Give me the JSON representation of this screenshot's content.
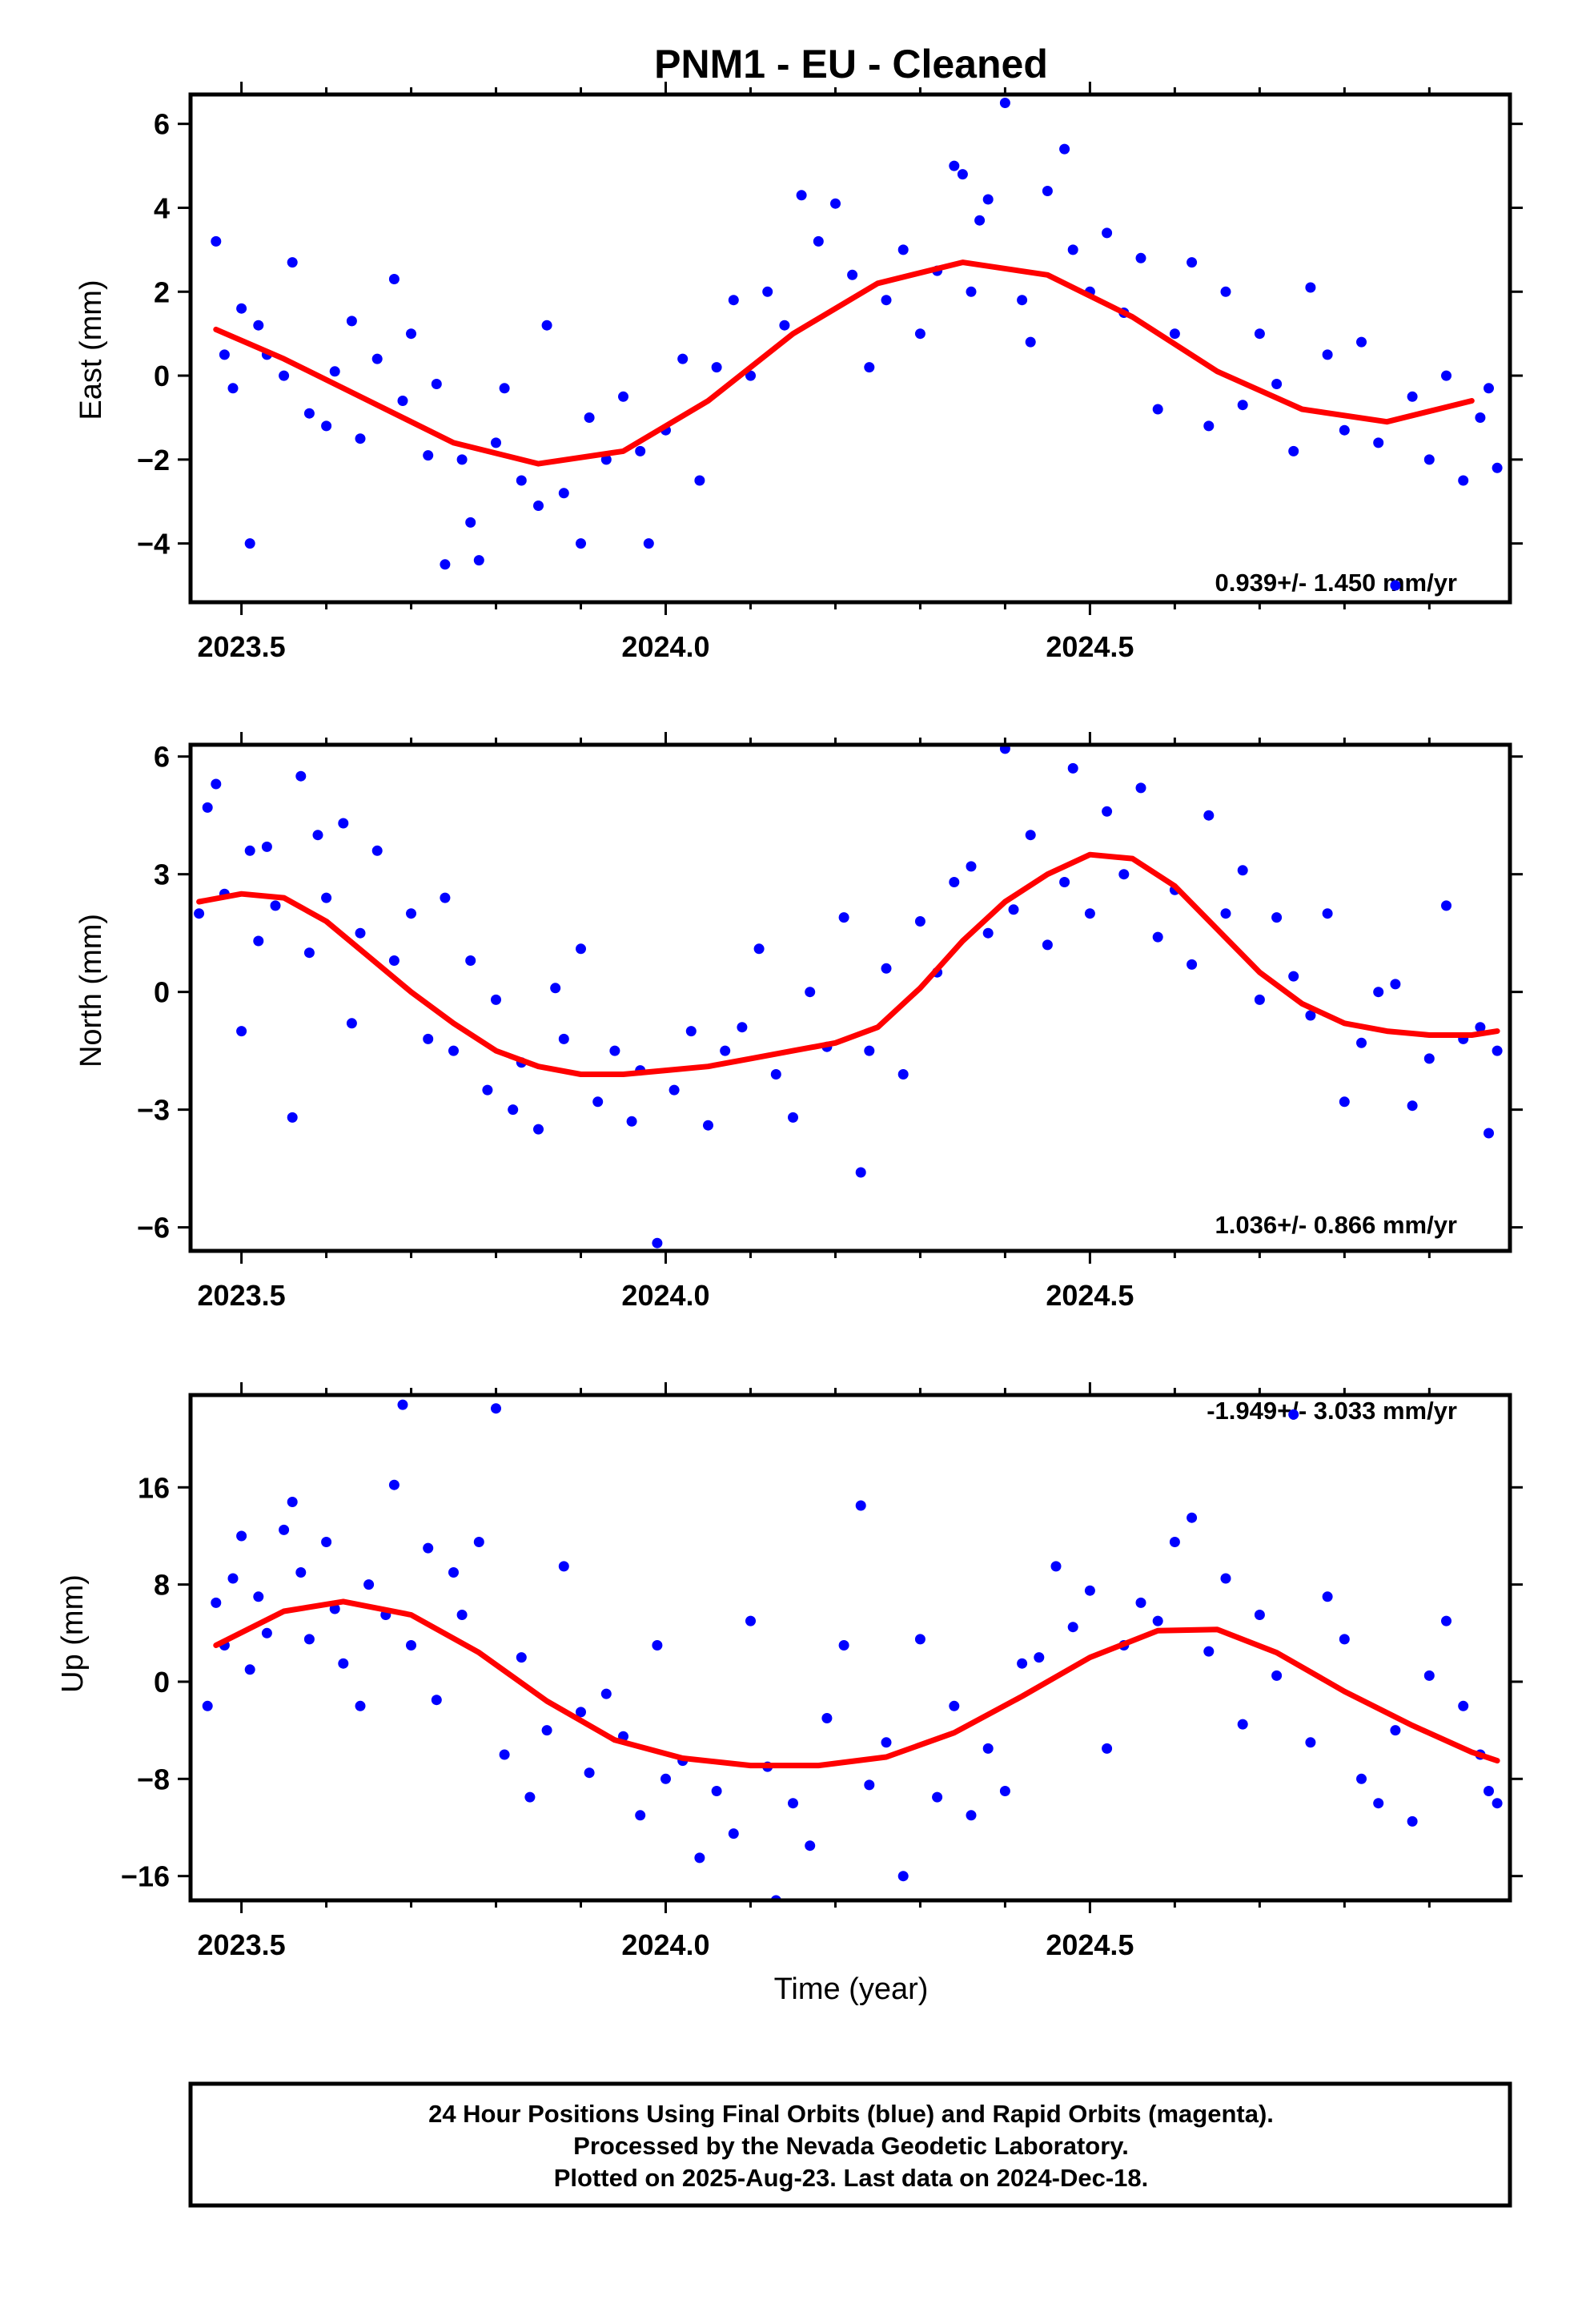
{
  "title": "PNM1  - EU - Cleaned",
  "colors": {
    "points": "#0000ff",
    "fit": "#ff0000",
    "frame": "#000000"
  },
  "xlabel": "Time (year)",
  "footer": {
    "line1": "24 Hour Positions Using Final Orbits (blue) and Rapid Orbits (magenta).",
    "line2": "Processed by the Nevada Geodetic Laboratory.",
    "line3": "Plotted on 2025-Aug-23. Last data on 2024-Dec-18."
  },
  "chart_data": [
    {
      "type": "scatter",
      "name": "east",
      "ylabel": "East (mm)",
      "xlim": [
        2023.44,
        2024.995
      ],
      "ylim": [
        -5.4,
        6.7
      ],
      "x_ticks": [
        2023.5,
        2024.0,
        2024.5
      ],
      "x_tick_labels": [
        "2023.5",
        "2024.0",
        "2024.5"
      ],
      "y_ticks": [
        -4,
        -2,
        0,
        2,
        4,
        6
      ],
      "y_tick_labels": [
        "−4",
        "−2",
        "0",
        "2",
        "4",
        "6"
      ],
      "rate_text": "0.939+/- 1.450 mm/yr",
      "rate_position": "bottom-right",
      "fit": {
        "x": [
          2023.47,
          2023.55,
          2023.65,
          2023.75,
          2023.85,
          2023.95,
          2024.05,
          2024.15,
          2024.25,
          2024.35,
          2024.45,
          2024.55,
          2024.65,
          2024.75,
          2024.85,
          2024.95
        ],
        "y": [
          1.1,
          0.4,
          -0.6,
          -1.6,
          -2.1,
          -1.8,
          -0.6,
          1.0,
          2.2,
          2.7,
          2.4,
          1.4,
          0.1,
          -0.8,
          -1.1,
          -0.6
        ]
      },
      "points": {
        "x": [
          2023.47,
          2023.48,
          2023.49,
          2023.5,
          2023.51,
          2023.52,
          2023.53,
          2023.55,
          2023.56,
          2023.58,
          2023.6,
          2023.61,
          2023.63,
          2023.64,
          2023.66,
          2023.68,
          2023.69,
          2023.7,
          2023.72,
          2023.73,
          2023.74,
          2023.76,
          2023.77,
          2023.78,
          2023.8,
          2023.81,
          2023.83,
          2023.85,
          2023.86,
          2023.88,
          2023.9,
          2023.91,
          2023.93,
          2023.95,
          2023.97,
          2023.98,
          2024.0,
          2024.02,
          2024.04,
          2024.06,
          2024.08,
          2024.1,
          2024.12,
          2024.14,
          2024.16,
          2024.18,
          2024.2,
          2024.22,
          2024.24,
          2024.26,
          2024.28,
          2024.3,
          2024.32,
          2024.34,
          2024.35,
          2024.36,
          2024.37,
          2024.38,
          2024.4,
          2024.42,
          2024.43,
          2024.45,
          2024.47,
          2024.48,
          2024.5,
          2024.52,
          2024.54,
          2024.56,
          2024.58,
          2024.6,
          2024.62,
          2024.64,
          2024.66,
          2024.68,
          2024.7,
          2024.72,
          2024.74,
          2024.76,
          2024.78,
          2024.8,
          2024.82,
          2024.84,
          2024.86,
          2024.88,
          2024.9,
          2024.92,
          2024.94,
          2024.96,
          2024.97,
          2024.98
        ],
        "y": [
          3.2,
          0.5,
          -0.3,
          1.6,
          -4.0,
          1.2,
          0.5,
          0.0,
          2.7,
          -0.9,
          -1.2,
          0.1,
          1.3,
          -1.5,
          0.4,
          2.3,
          -0.6,
          1.0,
          -1.9,
          -0.2,
          -4.5,
          -2.0,
          -3.5,
          -4.4,
          -1.6,
          -0.3,
          -2.5,
          -3.1,
          1.2,
          -2.8,
          -4.0,
          -1.0,
          -2.0,
          -0.5,
          -1.8,
          -4.0,
          -1.3,
          0.4,
          -2.5,
          0.2,
          1.8,
          0.0,
          2.0,
          1.2,
          4.3,
          3.2,
          4.1,
          2.4,
          0.2,
          1.8,
          3.0,
          1.0,
          2.5,
          5.0,
          4.8,
          2.0,
          3.7,
          4.2,
          6.5,
          1.8,
          0.8,
          4.4,
          5.4,
          3.0,
          2.0,
          3.4,
          1.5,
          2.8,
          -0.8,
          1.0,
          2.7,
          -1.2,
          2.0,
          -0.7,
          1.0,
          -0.2,
          -1.8,
          2.1,
          0.5,
          -1.3,
          0.8,
          -1.6,
          -5.0,
          -0.5,
          -2.0,
          0.0,
          -2.5,
          -1.0,
          -0.3,
          -2.2
        ]
      }
    },
    {
      "type": "scatter",
      "name": "north",
      "ylabel": "North (mm)",
      "xlim": [
        2023.44,
        2024.995
      ],
      "ylim": [
        -6.6,
        6.3
      ],
      "x_ticks": [
        2023.5,
        2024.0,
        2024.5
      ],
      "x_tick_labels": [
        "2023.5",
        "2024.0",
        "2024.5"
      ],
      "y_ticks": [
        -6,
        -3,
        0,
        3,
        6
      ],
      "y_tick_labels": [
        "−6",
        "−3",
        "0",
        "3",
        "6"
      ],
      "rate_text": "1.036+/- 0.866 mm/yr",
      "rate_position": "bottom-right",
      "fit": {
        "x": [
          2023.45,
          2023.5,
          2023.55,
          2023.6,
          2023.65,
          2023.7,
          2023.75,
          2023.8,
          2023.85,
          2023.9,
          2023.95,
          2024.0,
          2024.05,
          2024.1,
          2024.15,
          2024.2,
          2024.25,
          2024.3,
          2024.35,
          2024.4,
          2024.45,
          2024.5,
          2024.55,
          2024.6,
          2024.65,
          2024.7,
          2024.75,
          2024.8,
          2024.85,
          2024.9,
          2024.95,
          2024.98
        ],
        "y": [
          2.3,
          2.5,
          2.4,
          1.8,
          0.9,
          0.0,
          -0.8,
          -1.5,
          -1.9,
          -2.1,
          -2.1,
          -2.0,
          -1.9,
          -1.7,
          -1.5,
          -1.3,
          -0.9,
          0.1,
          1.3,
          2.3,
          3.0,
          3.5,
          3.4,
          2.7,
          1.6,
          0.5,
          -0.3,
          -0.8,
          -1.0,
          -1.1,
          -1.1,
          -1.0
        ]
      },
      "points": {
        "x": [
          2023.45,
          2023.46,
          2023.47,
          2023.48,
          2023.5,
          2023.51,
          2023.52,
          2023.53,
          2023.54,
          2023.56,
          2023.57,
          2023.58,
          2023.59,
          2023.6,
          2023.62,
          2023.63,
          2023.64,
          2023.66,
          2023.68,
          2023.7,
          2023.72,
          2023.74,
          2023.75,
          2023.77,
          2023.79,
          2023.8,
          2023.82,
          2023.83,
          2023.85,
          2023.87,
          2023.88,
          2023.9,
          2023.92,
          2023.94,
          2023.96,
          2023.97,
          2023.99,
          2024.01,
          2024.03,
          2024.05,
          2024.07,
          2024.09,
          2024.11,
          2024.13,
          2024.15,
          2024.17,
          2024.19,
          2024.21,
          2024.23,
          2024.24,
          2024.26,
          2024.28,
          2024.3,
          2024.32,
          2024.34,
          2024.36,
          2024.38,
          2024.4,
          2024.41,
          2024.43,
          2024.45,
          2024.47,
          2024.48,
          2024.5,
          2024.52,
          2024.54,
          2024.56,
          2024.58,
          2024.6,
          2024.62,
          2024.64,
          2024.66,
          2024.68,
          2024.7,
          2024.72,
          2024.74,
          2024.76,
          2024.78,
          2024.8,
          2024.82,
          2024.84,
          2024.86,
          2024.88,
          2024.9,
          2024.92,
          2024.94,
          2024.96,
          2024.97,
          2024.98
        ],
        "y": [
          2.0,
          4.7,
          5.3,
          2.5,
          -1.0,
          3.6,
          1.3,
          3.7,
          2.2,
          -3.2,
          5.5,
          1.0,
          4.0,
          2.4,
          4.3,
          -0.8,
          1.5,
          3.6,
          0.8,
          2.0,
          -1.2,
          2.4,
          -1.5,
          0.8,
          -2.5,
          -0.2,
          -3.0,
          -1.8,
          -3.5,
          0.1,
          -1.2,
          1.1,
          -2.8,
          -1.5,
          -3.3,
          -2.0,
          -6.4,
          -2.5,
          -1.0,
          -3.4,
          -1.5,
          -0.9,
          1.1,
          -2.1,
          -3.2,
          0.0,
          -1.4,
          1.9,
          -4.6,
          -1.5,
          0.6,
          -2.1,
          1.8,
          0.5,
          2.8,
          3.2,
          1.5,
          6.2,
          2.1,
          4.0,
          1.2,
          2.8,
          5.7,
          2.0,
          4.6,
          3.0,
          5.2,
          1.4,
          2.6,
          0.7,
          4.5,
          2.0,
          3.1,
          -0.2,
          1.9,
          0.4,
          -0.6,
          2.0,
          -2.8,
          -1.3,
          0.0,
          0.2,
          -2.9,
          -1.7,
          2.2,
          -1.2,
          -0.9,
          -3.6,
          -1.5
        ]
      }
    },
    {
      "type": "scatter",
      "name": "up",
      "ylabel": "Up (mm)",
      "xlim": [
        2023.44,
        2024.995
      ],
      "ylim": [
        -18,
        23.6
      ],
      "x_ticks": [
        2023.5,
        2024.0,
        2024.5
      ],
      "x_tick_labels": [
        "2023.5",
        "2024.0",
        "2024.5"
      ],
      "y_ticks": [
        -16,
        -8,
        0,
        8,
        16
      ],
      "y_tick_labels": [
        "−16",
        "−8",
        "0",
        "8",
        "16"
      ],
      "rate_text": "-1.949+/- 3.033 mm/yr",
      "rate_position": "top-right",
      "fit": {
        "x": [
          2023.47,
          2023.55,
          2023.62,
          2023.7,
          2023.78,
          2023.86,
          2023.94,
          2024.02,
          2024.1,
          2024.18,
          2024.26,
          2024.34,
          2024.42,
          2024.5,
          2024.58,
          2024.65,
          2024.72,
          2024.8,
          2024.88,
          2024.95,
          2024.98
        ],
        "y": [
          3.0,
          5.8,
          6.6,
          5.5,
          2.4,
          -1.6,
          -4.8,
          -6.3,
          -6.9,
          -6.9,
          -6.2,
          -4.2,
          -1.2,
          2.0,
          4.2,
          4.3,
          2.4,
          -0.8,
          -3.6,
          -5.8,
          -6.5
        ]
      },
      "points": {
        "x": [
          2023.46,
          2023.47,
          2023.48,
          2023.49,
          2023.5,
          2023.51,
          2023.52,
          2023.53,
          2023.55,
          2023.56,
          2023.57,
          2023.58,
          2023.6,
          2023.61,
          2023.62,
          2023.64,
          2023.65,
          2023.67,
          2023.68,
          2023.69,
          2023.7,
          2023.72,
          2023.73,
          2023.75,
          2023.76,
          2023.78,
          2023.8,
          2023.81,
          2023.83,
          2023.84,
          2023.86,
          2023.88,
          2023.9,
          2023.91,
          2023.93,
          2023.95,
          2023.97,
          2023.99,
          2024.0,
          2024.02,
          2024.04,
          2024.06,
          2024.08,
          2024.1,
          2024.12,
          2024.13,
          2024.15,
          2024.17,
          2024.19,
          2024.21,
          2024.23,
          2024.24,
          2024.26,
          2024.28,
          2024.3,
          2024.32,
          2024.34,
          2024.36,
          2024.38,
          2024.4,
          2024.42,
          2024.44,
          2024.46,
          2024.48,
          2024.5,
          2024.52,
          2024.54,
          2024.56,
          2024.58,
          2024.6,
          2024.62,
          2024.64,
          2024.66,
          2024.68,
          2024.7,
          2024.72,
          2024.74,
          2024.76,
          2024.78,
          2024.8,
          2024.82,
          2024.84,
          2024.86,
          2024.88,
          2024.9,
          2024.92,
          2024.94,
          2024.96,
          2024.97,
          2024.98
        ],
        "y": [
          -2.0,
          6.5,
          3.0,
          8.5,
          12.0,
          1.0,
          7.0,
          4.0,
          12.5,
          14.8,
          9.0,
          3.5,
          11.5,
          6.0,
          1.5,
          -2.0,
          8.0,
          5.5,
          16.2,
          22.8,
          3.0,
          11.0,
          -1.5,
          9.0,
          5.5,
          11.5,
          22.5,
          -6.0,
          2.0,
          -9.5,
          -4.0,
          9.5,
          -2.5,
          -7.5,
          -1.0,
          -4.5,
          -11.0,
          3.0,
          -8.0,
          -6.5,
          -14.5,
          -9.0,
          -12.5,
          5.0,
          -7.0,
          -18.0,
          -10.0,
          -13.5,
          -3.0,
          3.0,
          14.5,
          -8.5,
          -5.0,
          -16.0,
          3.5,
          -9.5,
          -2.0,
          -11.0,
          -5.5,
          -9.0,
          1.5,
          2.0,
          9.5,
          4.5,
          7.5,
          -5.5,
          3.0,
          6.5,
          5.0,
          11.5,
          13.5,
          2.5,
          8.5,
          -3.5,
          5.5,
          0.5,
          22.0,
          -5.0,
          7.0,
          3.5,
          -8.0,
          -10.0,
          -4.0,
          -11.5,
          0.5,
          5.0,
          -2.0,
          -6.0,
          -9.0,
          -10.0
        ]
      }
    }
  ]
}
